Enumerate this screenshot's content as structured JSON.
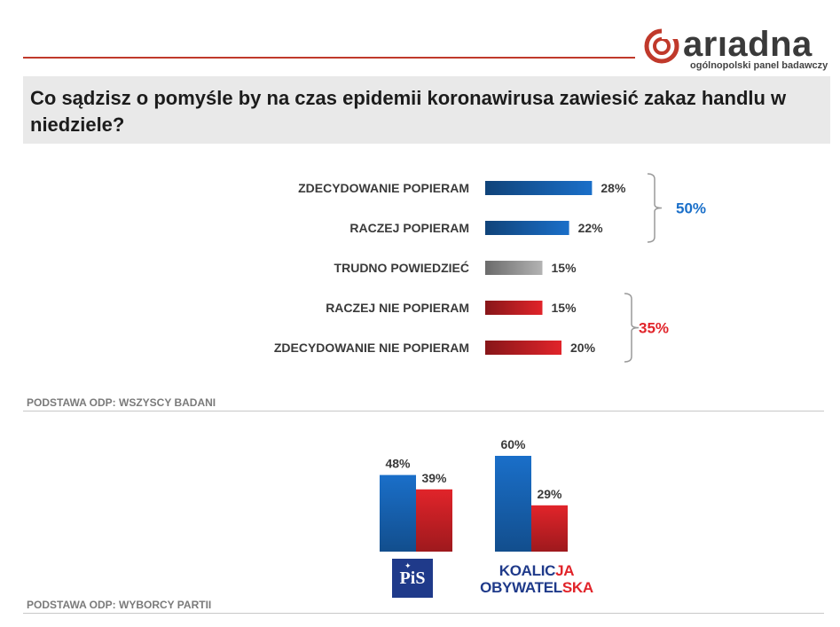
{
  "header": {
    "brand": "arıadna",
    "tagline": "ogólnopolski panel badawczy",
    "title": "Co sądzisz o pomyśle by na czas epidemii koronawirusa zawiesić zakaz handlu w niedziele?"
  },
  "colors": {
    "accent_rule": "#c0392b",
    "support_blue": "#1a6fc9",
    "neutral_gray": "#b3b3b3",
    "oppose_red": "#e1242a"
  },
  "chart_data": [
    {
      "type": "bar",
      "orientation": "horizontal",
      "categories": [
        "ZDECYDOWANIE POPIERAM",
        "RACZEJ POPIERAM",
        "TRUDNO POWIEDZIEĆ",
        "RACZEJ NIE POPIERAM",
        "ZDECYDOWANIE NIE POPIERAM"
      ],
      "values": [
        28,
        22,
        15,
        15,
        20
      ],
      "labels": [
        "28%",
        "22%",
        "15%",
        "15%",
        "20%"
      ],
      "bar_colors": [
        "#1a6fc9",
        "#1a6fc9",
        "#b3b3b3",
        "#e1242a",
        "#e1242a"
      ],
      "groups": [
        {
          "label": "50%",
          "color": "#1a6fc9",
          "members": [
            0,
            1
          ]
        },
        {
          "label": "35%",
          "color": "#e1242a",
          "members": [
            3,
            4
          ]
        }
      ],
      "base_label": "PODSTAWA ODP: WSZYSCY BADANI"
    },
    {
      "type": "bar",
      "orientation": "vertical",
      "categories": [
        "PiS",
        "KOALICJA OBYWATELSKA"
      ],
      "series": [
        {
          "values": [
            48,
            60
          ],
          "labels": [
            "48%",
            "60%"
          ],
          "color": "#1a6fc9"
        },
        {
          "values": [
            39,
            29
          ],
          "labels": [
            "39%",
            "29%"
          ],
          "color": "#e1242a"
        }
      ],
      "base_label": "PODSTAWA ODP: WYBORCY PARTII"
    }
  ],
  "party_logos": {
    "pis": "PiS",
    "ko_line1_blue": "KOALIC",
    "ko_line1_red": "JA",
    "ko_line2_blue": "OBYWATEL",
    "ko_line2_red": "SKA"
  }
}
